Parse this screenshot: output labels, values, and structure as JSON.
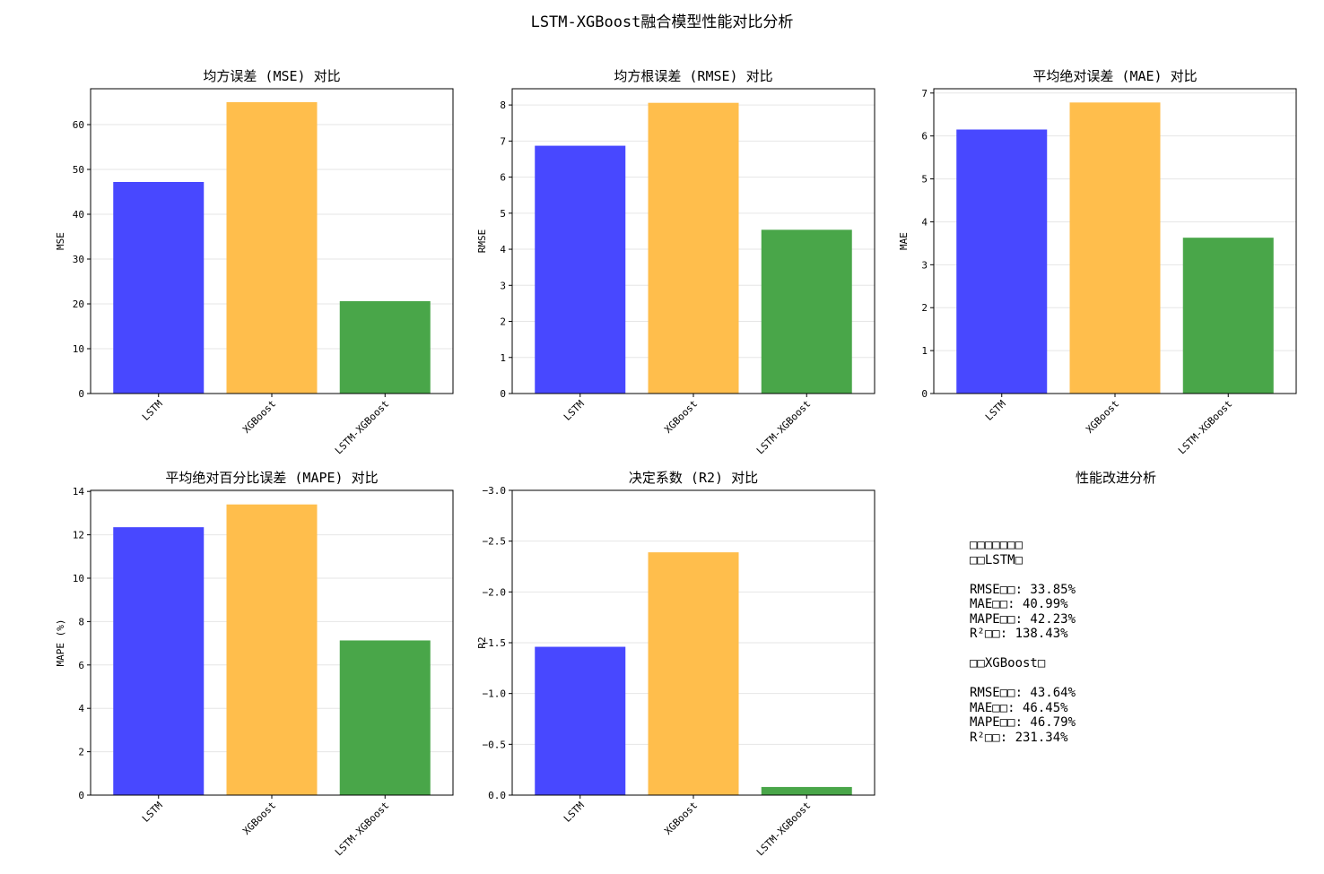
{
  "suptitle": "LSTM-XGBoost融合模型性能对比分析",
  "colors": {
    "LSTM": "#4848ff",
    "XGBoost": "#ffbe4c",
    "LSTM-XGBoost": "#49a649"
  },
  "chart_data": [
    {
      "type": "bar",
      "title": "均方误差 (MSE) 对比",
      "ylabel": "MSE",
      "categories": [
        "LSTM",
        "XGBoost",
        "LSTM-XGBoost"
      ],
      "values": [
        47.2,
        65.0,
        20.6
      ],
      "ylim": [
        0,
        68
      ],
      "yticks": [
        0,
        10,
        20,
        30,
        40,
        50,
        60
      ],
      "grid": true
    },
    {
      "type": "bar",
      "title": "均方根误差 (RMSE) 对比",
      "ylabel": "RMSE",
      "categories": [
        "LSTM",
        "XGBoost",
        "LSTM-XGBoost"
      ],
      "values": [
        6.87,
        8.06,
        4.54
      ],
      "ylim": [
        0,
        8.45
      ],
      "yticks": [
        0,
        1,
        2,
        3,
        4,
        5,
        6,
        7,
        8
      ],
      "grid": true
    },
    {
      "type": "bar",
      "title": "平均绝对误差 (MAE) 对比",
      "ylabel": "MAE",
      "categories": [
        "LSTM",
        "XGBoost",
        "LSTM-XGBoost"
      ],
      "values": [
        6.15,
        6.78,
        3.63
      ],
      "ylim": [
        0,
        7.1
      ],
      "yticks": [
        0,
        1,
        2,
        3,
        4,
        5,
        6,
        7
      ],
      "grid": true
    },
    {
      "type": "bar",
      "title": "平均绝对百分比误差 (MAPE) 对比",
      "ylabel": "MAPE (%)",
      "categories": [
        "LSTM",
        "XGBoost",
        "LSTM-XGBoost"
      ],
      "values": [
        12.35,
        13.4,
        7.13
      ],
      "ylim": [
        0,
        14.05
      ],
      "yticks": [
        0,
        2,
        4,
        6,
        8,
        10,
        12,
        14
      ],
      "grid": true
    },
    {
      "type": "bar",
      "title": "决定系数 (R2) 对比",
      "ylabel": "R2",
      "categories": [
        "LSTM",
        "XGBoost",
        "LSTM-XGBoost"
      ],
      "values": [
        -1.46,
        -2.39,
        -0.08
      ],
      "ylim": [
        0,
        -3.0
      ],
      "yticks": [
        0,
        -0.5,
        -1.0,
        -1.5,
        -2.0,
        -2.5,
        -3.0
      ],
      "yticklabels": [
        "0.0",
        "−0.5",
        "−1.0",
        "−1.5",
        "−2.0",
        "−2.5",
        "−3.0"
      ],
      "grid": true
    }
  ],
  "summary": {
    "title": "性能改进分析",
    "lines": [
      "□□□□□□□",
      "□□LSTM□",
      "",
      "RMSE□□: 33.85%",
      "MAE□□: 40.99%",
      "MAPE□□: 42.23%",
      "R²□□: 138.43%",
      "",
      "□□XGBoost□",
      "",
      "RMSE□□: 43.64%",
      "MAE□□: 46.45%",
      "MAPE□□: 46.79%",
      "R²□□: 231.34%"
    ]
  }
}
